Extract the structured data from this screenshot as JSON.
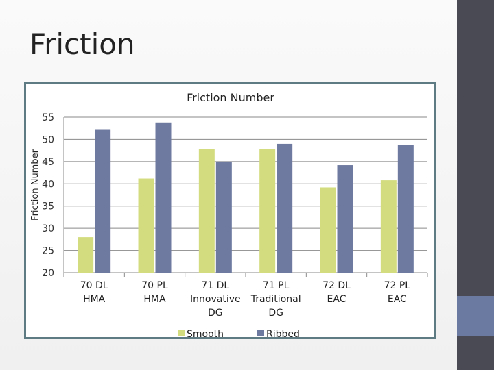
{
  "slide": {
    "title": "Friction"
  },
  "colors": {
    "smooth": "#d4dc80",
    "ribbed": "#6f7aa0",
    "frame": "#5e7b84",
    "sidebar": "#4a4a55",
    "sidebar_accent": "#6b7aa1"
  },
  "chart_data": {
    "type": "bar",
    "title": "Friction Number",
    "xlabel": "",
    "ylabel": "Friction Number",
    "ylim": [
      20,
      55
    ],
    "yticks": [
      20,
      25,
      30,
      35,
      40,
      45,
      50,
      55
    ],
    "grid": true,
    "legend": "bottom",
    "categories": [
      [
        "70 DL",
        "HMA"
      ],
      [
        "70 PL",
        "HMA"
      ],
      [
        "71 DL",
        "Innovative",
        "DG"
      ],
      [
        "71 PL",
        "Traditional",
        "DG"
      ],
      [
        "72 DL",
        "EAC"
      ],
      [
        "72 PL",
        "EAC"
      ]
    ],
    "series": [
      {
        "name": "Smooth",
        "color": "#d4dc80",
        "values": [
          28,
          41.2,
          47.8,
          47.8,
          39.2,
          40.8
        ]
      },
      {
        "name": "Ribbed",
        "color": "#6f7aa0",
        "values": [
          52.3,
          53.8,
          45,
          49,
          44.2,
          48.8
        ]
      }
    ]
  }
}
